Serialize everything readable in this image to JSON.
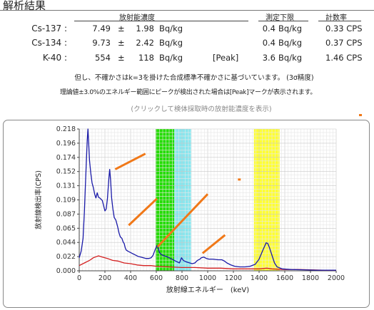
{
  "title": "解析結果",
  "headers": {
    "concentration": "放射能濃度",
    "detection_limit": "測定下限",
    "count_rate": "計数率"
  },
  "rows": [
    {
      "nuclide": "Cs-137 :",
      "value": "7.49",
      "pm": "±",
      "error": "1.98",
      "unit": "Bq/kg",
      "peak": "",
      "limit": "0.4",
      "limit_unit": "Bq/kg",
      "cps": "0.33 CPS"
    },
    {
      "nuclide": "Cs-134 :",
      "value": "9.73",
      "pm": "±",
      "error": "2.42",
      "unit": "Bq/kg",
      "peak": "",
      "limit": "0.4",
      "limit_unit": "Bq/kg",
      "cps": "0.37 CPS"
    },
    {
      "nuclide": "K-40 :",
      "value": "554",
      "pm": "±",
      "error": "118",
      "unit": "Bq/kg",
      "peak": "[Peak]",
      "limit": "3.6",
      "limit_unit": "Bq/kg",
      "cps": "1.46 CPS"
    }
  ],
  "notes": {
    "line1": "但し、不確かさはk=3を掛けた合成標準不確かさに基づいています。 (3σ精度)",
    "line2": "理論値±3.0%のエネルギー範囲にピークが検出された場合は[Peak]マークが表示されます。",
    "link": "(クリックして検体採取時の放射能濃度を表示)"
  },
  "colors": {
    "blue_series": "#1a1aa8",
    "red_series": "#d42020",
    "green_band": "#22dd00",
    "cyan_band": "#88e6ee",
    "yellow_band": "#ffff33",
    "annotation": "#f07818"
  },
  "chart_data": {
    "type": "line",
    "ylabel": "放射線検出率(CPS)",
    "xlabel": "放射線エネルギー　(keV)",
    "x_ticks": [
      "0",
      "200",
      "400",
      "600",
      "800",
      "1000",
      "1200",
      "1400",
      "1600",
      "1800",
      "2000"
    ],
    "y_ticks": [
      "0.000",
      "0.022",
      "0.044",
      "0.065",
      "0.087",
      "0.109",
      "0.131",
      "0.152",
      "0.174",
      "0.196",
      "0.218"
    ],
    "xlim": [
      0,
      2000
    ],
    "ylim": [
      0,
      0.218
    ],
    "grid": true,
    "bands": [
      {
        "color": "green",
        "range": [
          595,
          740
        ]
      },
      {
        "color": "cyan",
        "range": [
          740,
          870
        ]
      },
      {
        "color": "yellow",
        "range": [
          1360,
          1560
        ]
      }
    ],
    "series": [
      {
        "color": "blue",
        "points": [
          [
            0,
            0.02
          ],
          [
            15,
            0.03
          ],
          [
            30,
            0.05
          ],
          [
            40,
            0.09
          ],
          [
            48,
            0.13
          ],
          [
            55,
            0.165
          ],
          [
            62,
            0.2
          ],
          [
            68,
            0.218
          ],
          [
            74,
            0.195
          ],
          [
            80,
            0.17
          ],
          [
            90,
            0.15
          ],
          [
            100,
            0.135
          ],
          [
            110,
            0.128
          ],
          [
            120,
            0.118
          ],
          [
            130,
            0.112
          ],
          [
            140,
            0.12
          ],
          [
            150,
            0.113
          ],
          [
            160,
            0.112
          ],
          [
            170,
            0.11
          ],
          [
            180,
            0.108
          ],
          [
            190,
            0.1
          ],
          [
            200,
            0.092
          ],
          [
            210,
            0.095
          ],
          [
            220,
            0.112
          ],
          [
            230,
            0.14
          ],
          [
            237,
            0.156
          ],
          [
            244,
            0.14
          ],
          [
            252,
            0.112
          ],
          [
            262,
            0.095
          ],
          [
            272,
            0.082
          ],
          [
            285,
            0.078
          ],
          [
            300,
            0.067
          ],
          [
            310,
            0.058
          ],
          [
            320,
            0.052
          ],
          [
            332,
            0.05
          ],
          [
            342,
            0.044
          ],
          [
            350,
            0.042
          ],
          [
            357,
            0.036
          ],
          [
            365,
            0.032
          ],
          [
            380,
            0.03
          ],
          [
            400,
            0.028
          ],
          [
            420,
            0.026
          ],
          [
            440,
            0.024
          ],
          [
            460,
            0.022
          ],
          [
            480,
            0.021
          ],
          [
            500,
            0.02
          ],
          [
            520,
            0.019
          ],
          [
            540,
            0.019
          ],
          [
            560,
            0.02
          ],
          [
            575,
            0.024
          ],
          [
            590,
            0.032
          ],
          [
            605,
            0.039
          ],
          [
            615,
            0.035
          ],
          [
            625,
            0.028
          ],
          [
            640,
            0.025
          ],
          [
            660,
            0.023
          ],
          [
            680,
            0.022
          ],
          [
            700,
            0.02
          ],
          [
            720,
            0.018
          ],
          [
            740,
            0.016
          ],
          [
            760,
            0.014
          ],
          [
            780,
            0.012
          ],
          [
            796,
            0.02
          ],
          [
            810,
            0.016
          ],
          [
            830,
            0.014
          ],
          [
            860,
            0.012
          ],
          [
            880,
            0.011
          ],
          [
            900,
            0.012
          ],
          [
            920,
            0.016
          ],
          [
            940,
            0.018
          ],
          [
            950,
            0.02
          ],
          [
            970,
            0.021
          ],
          [
            990,
            0.019
          ],
          [
            1010,
            0.018
          ],
          [
            1040,
            0.018
          ],
          [
            1080,
            0.017
          ],
          [
            1110,
            0.017
          ],
          [
            1130,
            0.015
          ],
          [
            1150,
            0.012
          ],
          [
            1180,
            0.009
          ],
          [
            1210,
            0.007
          ],
          [
            1250,
            0.006
          ],
          [
            1290,
            0.006
          ],
          [
            1330,
            0.007
          ],
          [
            1370,
            0.01
          ],
          [
            1400,
            0.018
          ],
          [
            1430,
            0.032
          ],
          [
            1455,
            0.043
          ],
          [
            1468,
            0.042
          ],
          [
            1480,
            0.036
          ],
          [
            1500,
            0.024
          ],
          [
            1520,
            0.012
          ],
          [
            1540,
            0.006
          ],
          [
            1580,
            0.003
          ],
          [
            1650,
            0.002
          ],
          [
            1750,
            0.0015
          ],
          [
            1850,
            0.001
          ],
          [
            1950,
            0.001
          ],
          [
            2000,
            0.001
          ]
        ]
      },
      {
        "color": "red",
        "points": [
          [
            0,
            0.008
          ],
          [
            40,
            0.012
          ],
          [
            80,
            0.016
          ],
          [
            110,
            0.02
          ],
          [
            150,
            0.023
          ],
          [
            180,
            0.021
          ],
          [
            220,
            0.019
          ],
          [
            260,
            0.016
          ],
          [
            300,
            0.015
          ],
          [
            350,
            0.012
          ],
          [
            400,
            0.011
          ],
          [
            450,
            0.009
          ],
          [
            500,
            0.008
          ],
          [
            560,
            0.008
          ],
          [
            600,
            0.007
          ],
          [
            700,
            0.006
          ],
          [
            800,
            0.005
          ],
          [
            900,
            0.005
          ],
          [
            1000,
            0.004
          ],
          [
            1100,
            0.004
          ],
          [
            1200,
            0.003
          ],
          [
            1300,
            0.003
          ],
          [
            1400,
            0.003
          ],
          [
            1460,
            0.004
          ],
          [
            1500,
            0.003
          ],
          [
            1600,
            0.002
          ],
          [
            1700,
            0.002
          ],
          [
            1800,
            0.0015
          ],
          [
            1900,
            0.001
          ],
          [
            2000,
            0.001
          ]
        ]
      }
    ],
    "annotations": [
      [
        [
          280,
          0.156
        ],
        [
          515,
          0.18
        ]
      ],
      [
        [
          385,
          0.07
        ],
        [
          605,
          0.111
        ]
      ],
      [
        [
          610,
          0.037
        ],
        [
          1000,
          0.118
        ]
      ],
      [
        [
          960,
          0.027
        ],
        [
          1135,
          0.055
        ]
      ]
    ]
  }
}
